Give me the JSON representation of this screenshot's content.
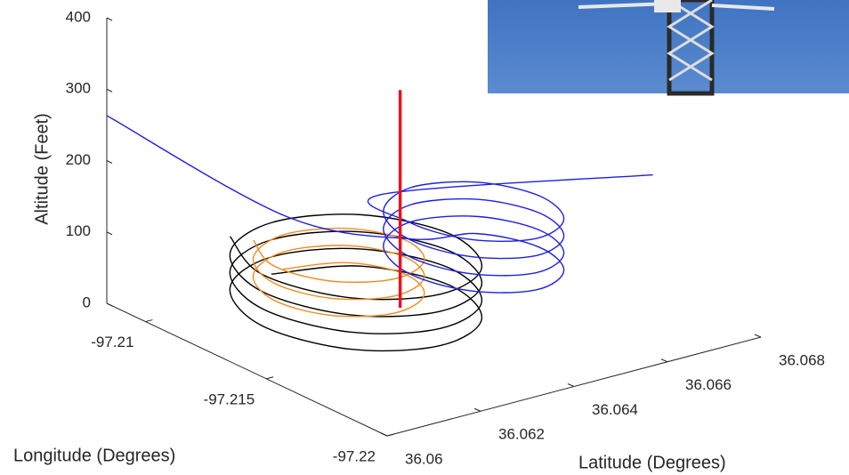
{
  "chart_data": {
    "type": "line3d",
    "x_label": "Longitude (Degrees)",
    "y_label": "Latitude (Degrees)",
    "z_label": "Altitude (Feet)",
    "xlim": [
      -97.22,
      -97.2084
    ],
    "ylim": [
      36.06,
      36.068
    ],
    "zlim": [
      0,
      400
    ],
    "xticks": [
      -97.22,
      -97.215,
      -97.21
    ],
    "yticks": [
      36.06,
      36.062,
      36.064,
      36.066,
      36.068
    ],
    "zticks": [
      0,
      100,
      200,
      300,
      400
    ],
    "series": [
      {
        "color": "#000000",
        "width": 1.4,
        "x": [
          -97.2096,
          -97.2106,
          -97.2131,
          -97.2156,
          -97.2166,
          -97.2156,
          -97.2131,
          -97.2106,
          -97.2096,
          -97.2106,
          -97.2131,
          -97.2156,
          -97.2166,
          -97.2156,
          -97.2131,
          -97.2106,
          -97.2096,
          -97.2106,
          -97.2131,
          -97.2156,
          -97.2166,
          -97.2156,
          -97.2131,
          -97.2106,
          -97.2096,
          -97.2106,
          -97.2131,
          -97.2156,
          -97.2166,
          -97.2156,
          -97.2131,
          -97.2106
        ],
        "y": [
          36.0629,
          36.0643,
          36.0649,
          36.0643,
          36.0629,
          36.0615,
          36.0609,
          36.0615,
          36.0629,
          36.0643,
          36.0649,
          36.0643,
          36.0629,
          36.0615,
          36.0609,
          36.0615,
          36.0629,
          36.0643,
          36.0649,
          36.0643,
          36.0629,
          36.0615,
          36.0609,
          36.0615,
          36.0629,
          36.0643,
          36.0649,
          36.0643,
          36.0629,
          36.0615,
          36.0609,
          36.0615
        ],
        "z": [
          10,
          13,
          16,
          19,
          22,
          25,
          28,
          31,
          34,
          37,
          40,
          43,
          46,
          49,
          52,
          55,
          58,
          61,
          64,
          67,
          70,
          73,
          76,
          79,
          82,
          85,
          88,
          91,
          94,
          97,
          100,
          103
        ]
      },
      {
        "color": "#f08a1c",
        "width": 1.4,
        "x": [
          -97.2099,
          -97.2106,
          -97.2122,
          -97.2138,
          -97.2145,
          -97.2138,
          -97.2122,
          -97.2106,
          -97.2099,
          -97.2106,
          -97.2122,
          -97.2138,
          -97.2145,
          -97.2138,
          -97.2122,
          -97.2106,
          -97.2099,
          -97.2106,
          -97.2122,
          -97.2138,
          -97.2145,
          -97.2138,
          -97.2122,
          -97.2106
        ],
        "y": [
          36.063,
          36.064,
          36.0644,
          36.064,
          36.063,
          36.062,
          36.0616,
          36.062,
          36.063,
          36.064,
          36.0644,
          36.064,
          36.063,
          36.062,
          36.0616,
          36.062,
          36.063,
          36.064,
          36.0644,
          36.064,
          36.063,
          36.062,
          36.0616,
          36.062
        ],
        "z": [
          20,
          23,
          26,
          29,
          32,
          35,
          38,
          41,
          44,
          47,
          50,
          53,
          56,
          59,
          62,
          65,
          68,
          71,
          74,
          77,
          80,
          83,
          86,
          89
        ]
      },
      {
        "color": "#1f1fe0",
        "width": 1.4,
        "x": [
          -97.2084,
          -97.211,
          -97.2117,
          -97.2125,
          -97.2143,
          -97.2161,
          -97.2169,
          -97.2161,
          -97.2143,
          -97.2125,
          -97.2117,
          -97.2125,
          -97.2143,
          -97.2161,
          -97.2169,
          -97.2161,
          -97.2143,
          -97.2125,
          -97.2117,
          -97.2125,
          -97.2143,
          -97.2161,
          -97.2169,
          -97.2161,
          -97.2143,
          -97.2125,
          -97.2117,
          -97.2125,
          -97.2143,
          -97.2161,
          -97.2169,
          -97.2161,
          -97.2143,
          -97.2125,
          -97.2165
        ],
        "y": [
          36.06,
          36.0625,
          36.0648,
          36.0658,
          36.0662,
          36.0658,
          36.0648,
          36.0638,
          36.0634,
          36.0638,
          36.0648,
          36.0658,
          36.0662,
          36.0658,
          36.0648,
          36.0638,
          36.0634,
          36.0638,
          36.0648,
          36.0658,
          36.0662,
          36.0658,
          36.0648,
          36.0638,
          36.0634,
          36.0638,
          36.0648,
          36.0658,
          36.0662,
          36.0658,
          36.0648,
          36.0638,
          36.0634,
          36.0638,
          36.0675
        ],
        "z": [
          263,
          120,
          60,
          63,
          66,
          69,
          72,
          75,
          78,
          81,
          84,
          87,
          90,
          93,
          96,
          99,
          102,
          105,
          108,
          111,
          114,
          117,
          120,
          123,
          126,
          129,
          132,
          135,
          138,
          141,
          144,
          147,
          150,
          153,
          180
        ]
      },
      {
        "color": "#e8141c",
        "width": 3.5,
        "x": [
          -97.213,
          -97.213
        ],
        "y": [
          36.0639,
          36.0639
        ],
        "z": [
          0,
          305
        ]
      }
    ]
  }
}
